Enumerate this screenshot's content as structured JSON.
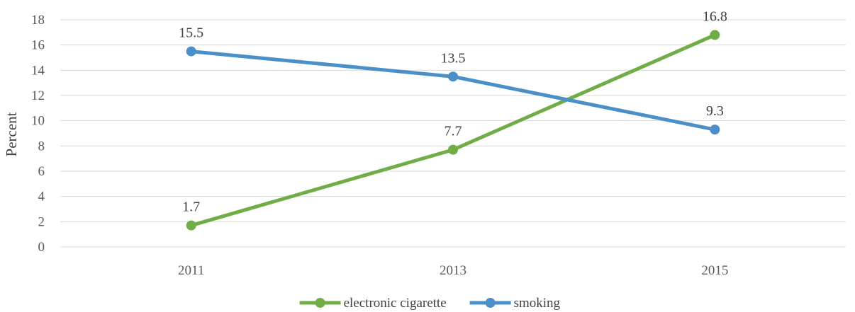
{
  "chart_data": {
    "type": "line",
    "title": "",
    "xlabel": "",
    "ylabel": "Percent",
    "categories": [
      "2011",
      "2013",
      "2015"
    ],
    "ylim": [
      0,
      18
    ],
    "yticks": [
      0,
      2,
      4,
      6,
      8,
      10,
      12,
      14,
      16,
      18
    ],
    "grid": true,
    "legend_position": "bottom",
    "series": [
      {
        "name": "electronic cigarette",
        "values": [
          1.7,
          7.7,
          16.8
        ],
        "color": "#70ad47",
        "labels": [
          "1.7",
          "7.7",
          "16.8"
        ]
      },
      {
        "name": "smoking",
        "values": [
          15.5,
          13.5,
          9.3
        ],
        "color": "#4a8fc7",
        "labels": [
          "15.5",
          "13.5",
          "9.3"
        ]
      }
    ]
  }
}
